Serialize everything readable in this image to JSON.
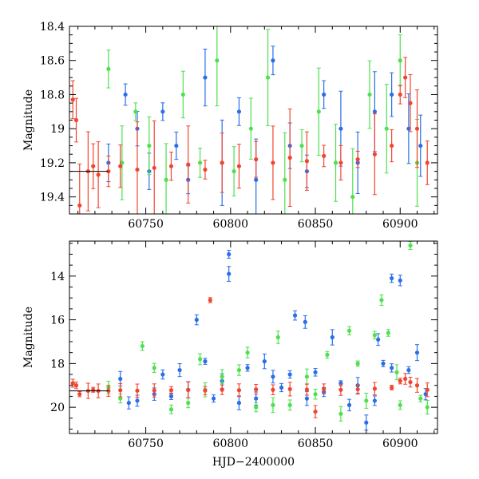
{
  "chart_data": [
    {
      "type": "scatter",
      "panel": "top",
      "title": "",
      "xlabel": "",
      "ylabel": "Magnitude",
      "xlim": [
        60705,
        60922
      ],
      "ylim": [
        19.5,
        18.4
      ],
      "y_inverted": true,
      "xticks": [
        60750,
        60800,
        60850,
        60900
      ],
      "yticks": [
        18.4,
        18.6,
        18.8,
        19,
        19.2,
        19.4
      ],
      "ytick_labels": [
        "18.4",
        "18.6",
        "18.8",
        "19",
        "19.2",
        "19.4"
      ],
      "reference_line": {
        "y": 19.25,
        "x_range": [
          60705,
          60728
        ]
      },
      "grid": false,
      "legend": "none",
      "series": [
        {
          "color": "#2a6ee8",
          "marker": "filled-circle-with-errorbar",
          "x": [
            60728,
            60738,
            60745,
            60752,
            60760,
            60768,
            60775,
            60785,
            60795,
            60805,
            60815,
            60825,
            60835,
            60845,
            60855,
            60865,
            60875,
            60885,
            60895,
            60905,
            60912
          ],
          "y": [
            19.2,
            18.8,
            19.0,
            19.25,
            18.9,
            19.1,
            19.3,
            18.7,
            19.2,
            18.9,
            19.3,
            18.6,
            19.1,
            19.25,
            18.8,
            19.0,
            19.2,
            18.9,
            18.8,
            19.0,
            19.1
          ]
        },
        {
          "color": "#4ee04e",
          "marker": "filled-circle-with-errorbar",
          "x": [
            60728,
            60736,
            60744,
            60752,
            60762,
            60772,
            60782,
            60792,
            60802,
            60812,
            60822,
            60832,
            60842,
            60852,
            60862,
            60872,
            60882,
            60892,
            60900,
            60910
          ],
          "y": [
            18.65,
            19.2,
            18.9,
            19.1,
            19.3,
            18.8,
            19.2,
            18.6,
            19.25,
            19.0,
            18.7,
            19.3,
            19.1,
            18.9,
            19.2,
            19.4,
            18.8,
            19.0,
            18.6,
            19.2
          ]
        },
        {
          "color": "#f04630",
          "marker": "filled-circle-with-errorbar",
          "x": [
            60707,
            60709,
            60711,
            60716,
            60719,
            60722,
            60728,
            60735,
            60745,
            60755,
            60765,
            60775,
            60785,
            60795,
            60805,
            60815,
            60825,
            60835,
            60845,
            60855,
            60865,
            60875,
            60885,
            60895,
            60900,
            60903,
            60906,
            60910,
            60916
          ],
          "y": [
            18.83,
            18.95,
            19.45,
            19.25,
            19.22,
            19.27,
            19.25,
            19.22,
            19.24,
            19.23,
            19.22,
            19.21,
            19.24,
            19.2,
            19.22,
            19.18,
            19.2,
            19.17,
            19.19,
            19.16,
            19.2,
            19.18,
            19.15,
            19.1,
            18.8,
            18.7,
            18.85,
            19.0,
            19.2
          ]
        }
      ]
    },
    {
      "type": "scatter",
      "panel": "bottom",
      "title": "",
      "xlabel": "HJD−2400000",
      "ylabel": "Magnitude",
      "xlim": [
        60705,
        60922
      ],
      "ylim": [
        21.2,
        12.4
      ],
      "y_inverted": true,
      "xticks": [
        60750,
        60800,
        60850,
        60900
      ],
      "yticks": [
        14,
        16,
        18,
        20
      ],
      "ytick_labels": [
        "14",
        "16",
        "18",
        "20"
      ],
      "reference_line": {
        "y": 19.25,
        "x_range": [
          60705,
          60728
        ]
      },
      "grid": false,
      "legend": "none",
      "series": [
        {
          "color": "#2a6ee8",
          "marker": "filled-circle-with-errorbar",
          "x": [
            60799,
            60799,
            60780,
            60838,
            60844,
            60895,
            60900,
            60880,
            60887,
            60860,
            60820,
            60760,
            60740,
            60770,
            60790,
            60810,
            60830,
            60850,
            60870,
            60890,
            60910,
            60915,
            60905,
            60885,
            60865,
            60845,
            60825,
            60805,
            60785,
            60765,
            60745,
            60735,
            60755,
            60775,
            60795,
            60815,
            60835,
            60855,
            60875,
            60895
          ],
          "y": [
            13.0,
            13.9,
            16.0,
            15.8,
            16.1,
            14.1,
            14.2,
            20.7,
            16.9,
            16.8,
            17.9,
            18.5,
            19.8,
            18.3,
            19.6,
            18.2,
            19.1,
            18.4,
            19.9,
            18.0,
            17.5,
            19.4,
            18.3,
            19.7,
            18.9,
            19.6,
            18.6,
            19.8,
            17.9,
            19.5,
            19.7,
            18.7,
            19.4,
            19.2,
            18.8,
            19.6,
            18.5,
            19.3,
            19.0,
            18.2
          ]
        },
        {
          "color": "#4ee04e",
          "marker": "filled-circle-with-errorbar",
          "x": [
            60906,
            60889,
            60885,
            60828,
            60748,
            60782,
            60810,
            60870,
            60893,
            60900,
            60875,
            60857,
            60835,
            60815,
            60795,
            60775,
            60755,
            60735,
            60728,
            60765,
            60785,
            60805,
            60825,
            60845,
            60865,
            60880,
            60898,
            60912,
            60916,
            60850
          ],
          "y": [
            12.6,
            15.1,
            16.7,
            16.8,
            17.2,
            17.8,
            17.5,
            16.5,
            16.6,
            19.9,
            18.0,
            17.6,
            19.9,
            20.0,
            18.6,
            19.8,
            18.2,
            19.6,
            19.1,
            20.1,
            19.2,
            18.3,
            19.9,
            18.6,
            20.3,
            19.7,
            18.4,
            19.6,
            20.0,
            19.4
          ]
        },
        {
          "color": "#f04630",
          "marker": "filled-circle-with-errorbar",
          "x": [
            60707,
            60709,
            60711,
            60716,
            60719,
            60722,
            60728,
            60735,
            60745,
            60755,
            60765,
            60775,
            60785,
            60788,
            60795,
            60805,
            60815,
            60825,
            60835,
            60845,
            60850,
            60855,
            60865,
            60875,
            60885,
            60895,
            60900,
            60903,
            60906,
            60910,
            60916
          ],
          "y": [
            18.9,
            19.0,
            19.4,
            19.25,
            19.2,
            19.25,
            19.25,
            19.22,
            19.24,
            19.23,
            19.22,
            19.21,
            19.24,
            15.1,
            19.2,
            19.22,
            19.18,
            19.2,
            19.17,
            19.19,
            20.2,
            19.16,
            19.2,
            19.18,
            19.15,
            19.1,
            18.8,
            18.7,
            18.85,
            19.0,
            19.2
          ]
        }
      ]
    }
  ]
}
